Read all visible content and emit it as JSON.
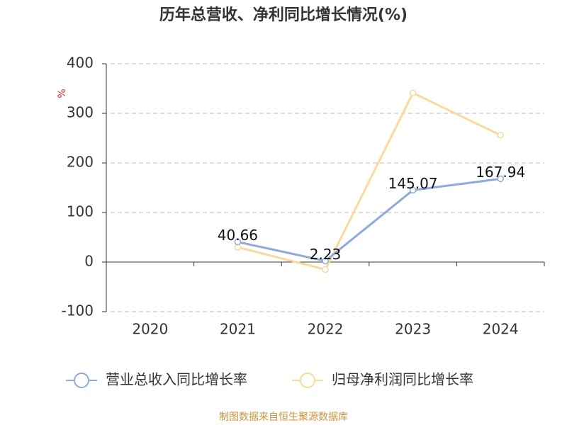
{
  "chart_data": {
    "type": "line",
    "title": "历年总营收、净利同比增长情况(%)",
    "y_label": "%",
    "categories": [
      "2020",
      "2021",
      "2022",
      "2023",
      "2024"
    ],
    "series": [
      {
        "name": "营业总收入同比增长率",
        "color": "#8eaadb",
        "values": [
          null,
          40.66,
          2.23,
          145.07,
          167.94
        ],
        "show_labels": true
      },
      {
        "name": "归母净利润同比增长率",
        "color": "#fbd99c",
        "values": [
          null,
          30,
          -15,
          341,
          256
        ],
        "show_labels": false
      }
    ],
    "ylim": [
      -100,
      400
    ],
    "yticks": [
      -100,
      0,
      100,
      200,
      300,
      400
    ],
    "grid": true,
    "source": "制图数据来自恒生聚源数据库"
  }
}
